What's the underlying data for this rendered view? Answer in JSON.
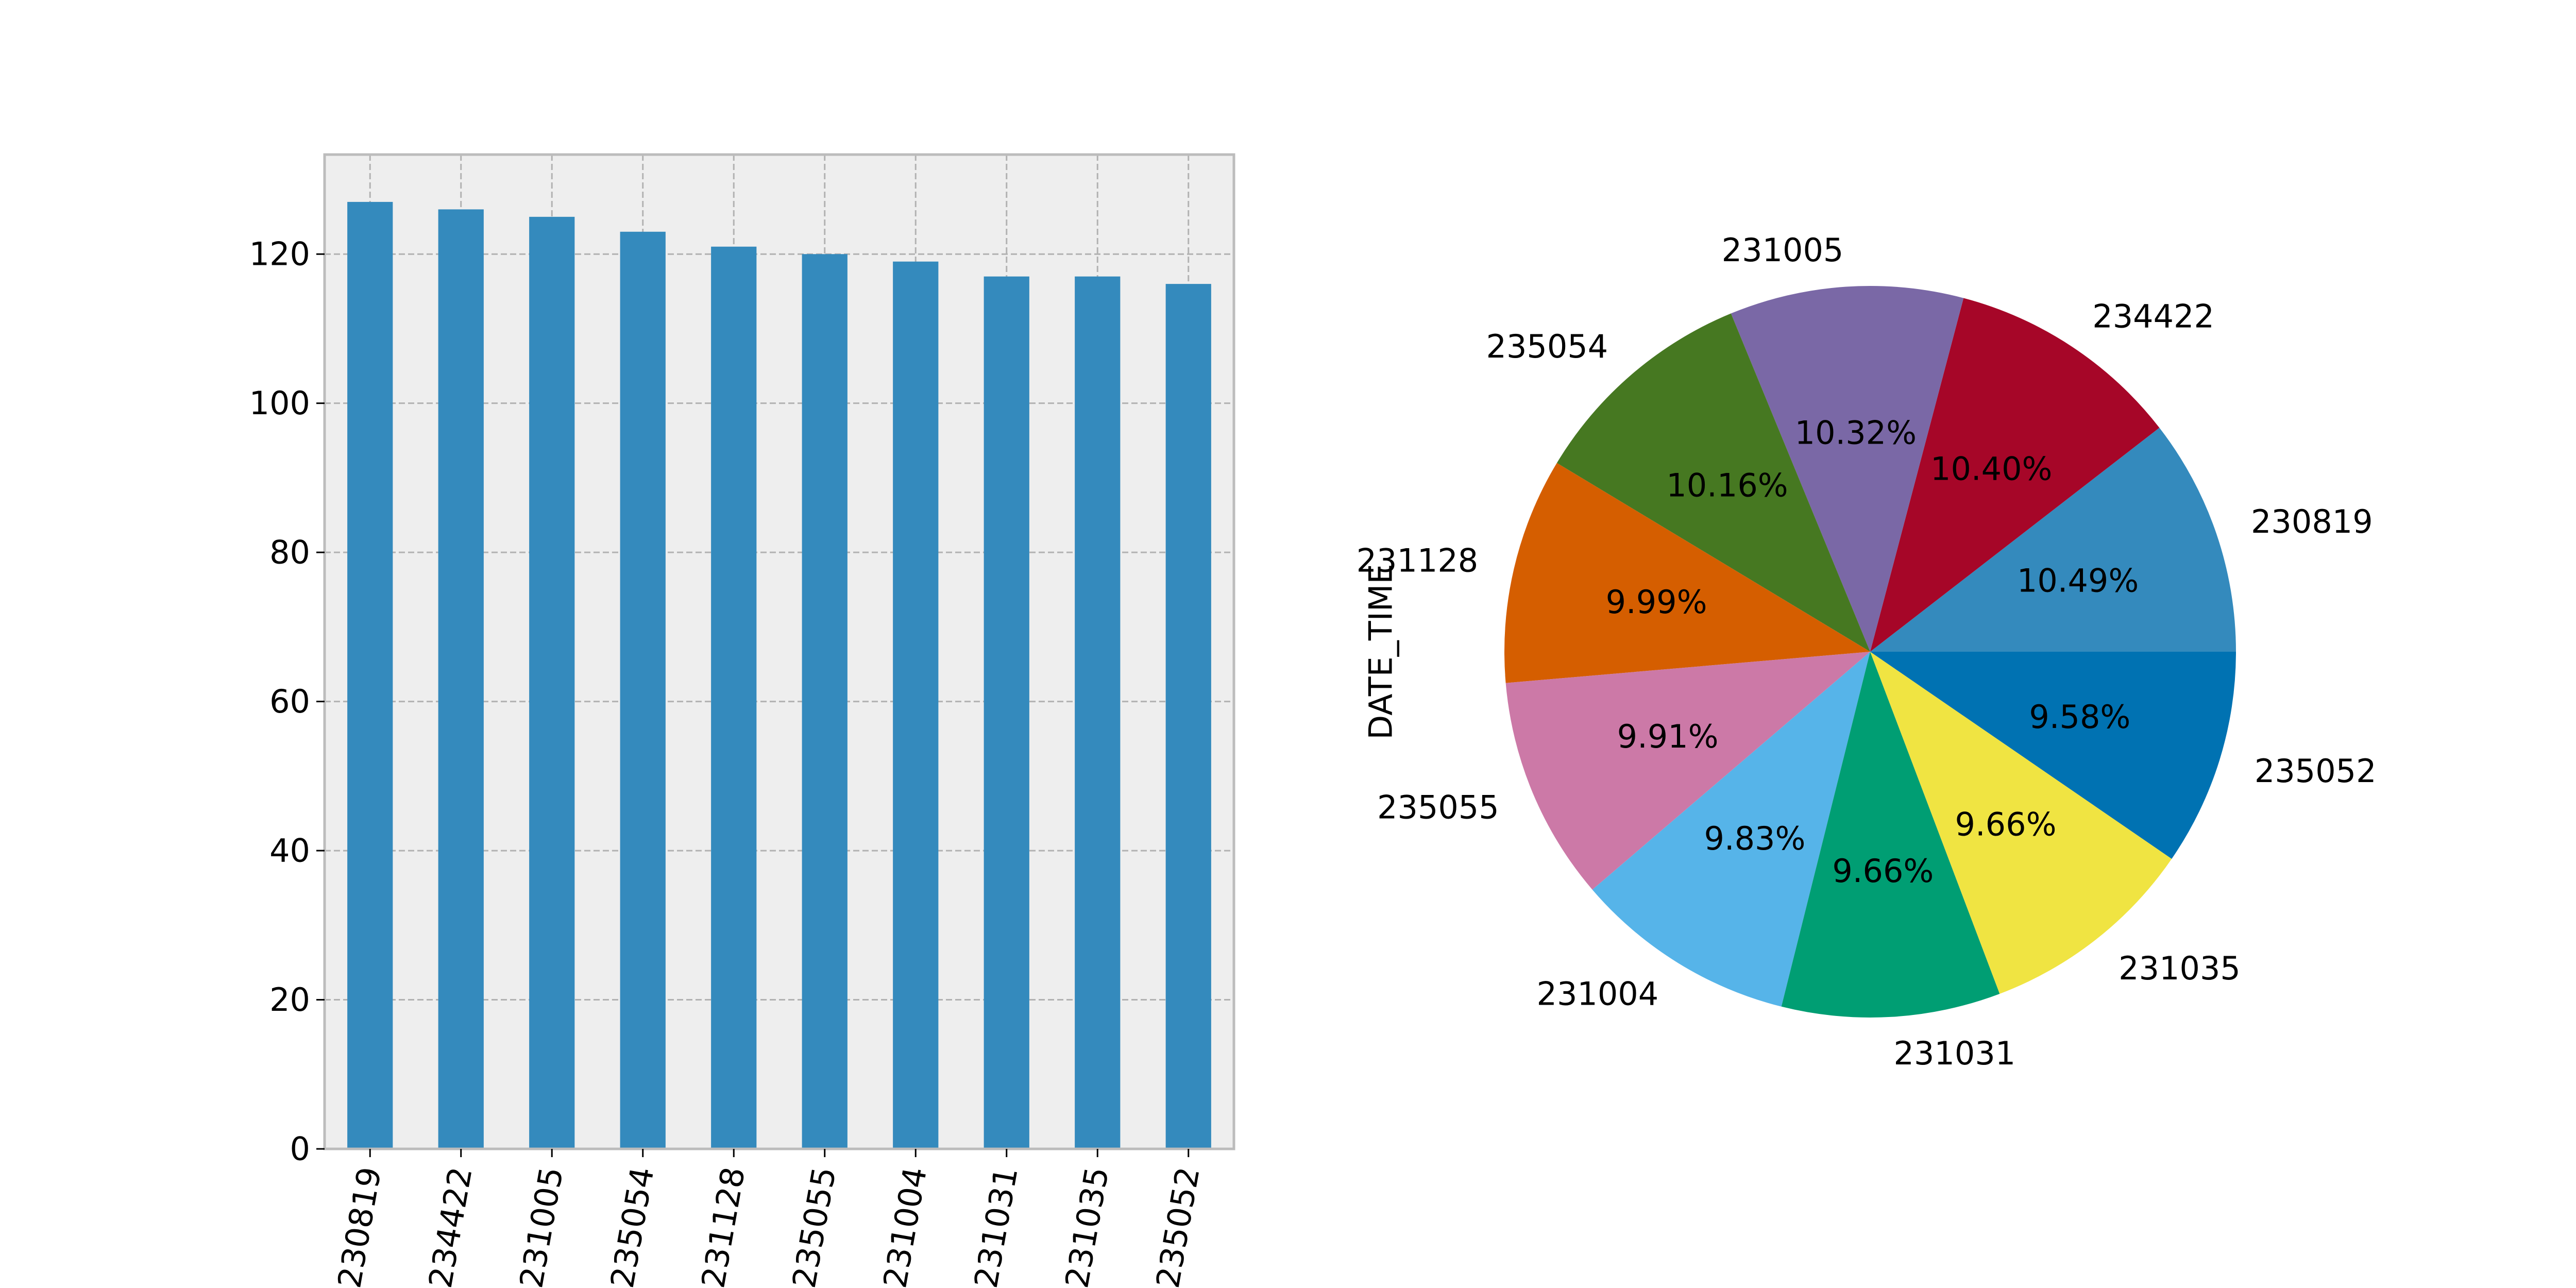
{
  "chart_data": [
    {
      "type": "bar",
      "title": "",
      "xlabel": "",
      "ylabel": "",
      "categories": [
        "230819",
        "234422",
        "231005",
        "235054",
        "231128",
        "235055",
        "231004",
        "231031",
        "231035",
        "235052"
      ],
      "values": [
        127,
        126,
        125,
        123,
        121,
        120,
        119,
        117,
        117,
        116
      ],
      "ylim": [
        0,
        133.35
      ],
      "yticks": [
        0,
        20,
        40,
        60,
        80,
        100,
        120
      ],
      "grid": true,
      "legend": "none",
      "color": "#348abd",
      "background": "#eeeeee"
    },
    {
      "type": "pie",
      "title": "",
      "ylabel": "DATE_TIME",
      "labels": [
        "230819",
        "234422",
        "231005",
        "235054",
        "231128",
        "235055",
        "231004",
        "231031",
        "231035",
        "235052"
      ],
      "values": [
        127,
        126,
        125,
        123,
        121,
        120,
        119,
        117,
        117,
        116
      ],
      "percent_labels": [
        "10.49%",
        "10.40%",
        "10.32%",
        "10.16%",
        "9.99%",
        "9.91%",
        "9.83%",
        "9.66%",
        "9.66%",
        "9.58%"
      ],
      "colors": [
        "#348abd",
        "#a60628",
        "#7a68a6",
        "#467821",
        "#d55e00",
        "#cc79a7",
        "#56b4e9",
        "#009e73",
        "#f0e442",
        "#0072b2"
      ],
      "legend": "none"
    }
  ]
}
